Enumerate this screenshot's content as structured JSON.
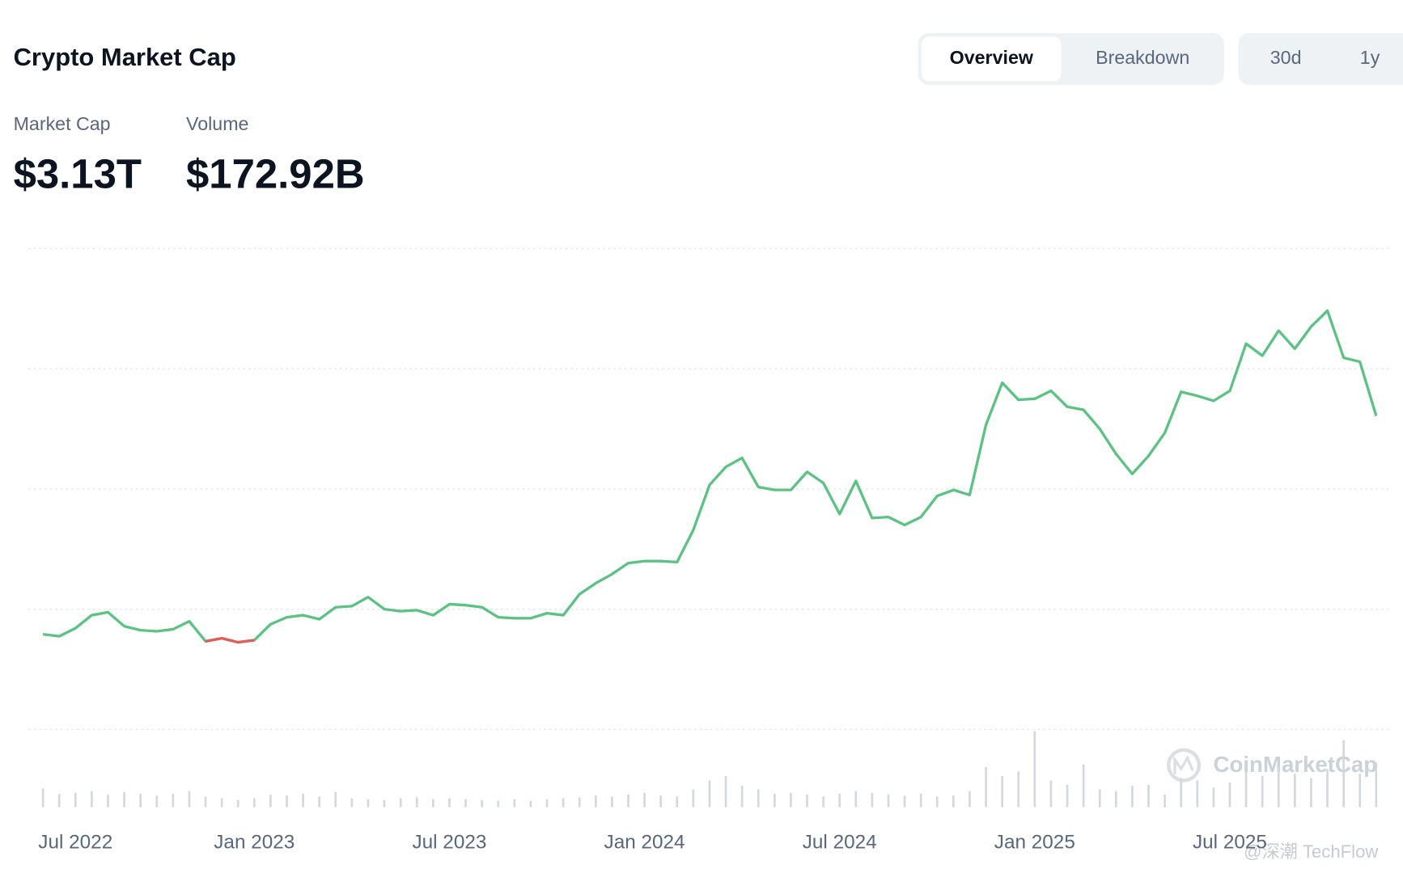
{
  "header": {
    "title": "Crypto Market Cap",
    "tabs": [
      "Overview",
      "Breakdown"
    ],
    "ranges": [
      "30d",
      "1y"
    ]
  },
  "stats": [
    {
      "label": "Market Cap",
      "value": "$3.13T"
    },
    {
      "label": "Volume",
      "value": "$172.92B"
    }
  ],
  "chart_data": {
    "type": "line",
    "categories": [
      null,
      null,
      "Jul 2022",
      null,
      null,
      null,
      null,
      null,
      null,
      null,
      null,
      null,
      null,
      "Jan 2023",
      null,
      null,
      null,
      null,
      null,
      null,
      null,
      null,
      null,
      null,
      null,
      "Jul 2023",
      null,
      null,
      null,
      null,
      null,
      null,
      null,
      null,
      null,
      null,
      null,
      "Jan 2024",
      null,
      null,
      null,
      null,
      null,
      null,
      null,
      null,
      null,
      null,
      null,
      "Jul 2024",
      null,
      null,
      null,
      null,
      null,
      null,
      null,
      null,
      null,
      null,
      null,
      "Jan 2025",
      null,
      null,
      null,
      null,
      null,
      null,
      null,
      null,
      null,
      null,
      null,
      "Jul 2025",
      null,
      null,
      null,
      null,
      null,
      null,
      null,
      null,
      null
    ],
    "values": [
      0.95,
      0.93,
      1.01,
      1.14,
      1.17,
      1.03,
      0.99,
      0.98,
      1.0,
      1.08,
      0.88,
      0.91,
      0.87,
      0.89,
      1.05,
      1.12,
      1.14,
      1.1,
      1.22,
      1.23,
      1.32,
      1.2,
      1.18,
      1.19,
      1.14,
      1.25,
      1.24,
      1.22,
      1.12,
      1.11,
      1.11,
      1.16,
      1.14,
      1.35,
      1.46,
      1.55,
      1.66,
      1.68,
      1.68,
      1.67,
      1.99,
      2.44,
      2.62,
      2.71,
      2.42,
      2.39,
      2.39,
      2.57,
      2.46,
      2.15,
      2.48,
      2.11,
      2.12,
      2.04,
      2.12,
      2.33,
      2.39,
      2.34,
      3.04,
      3.46,
      3.29,
      3.3,
      3.38,
      3.22,
      3.19,
      3.0,
      2.75,
      2.55,
      2.73,
      2.96,
      3.37,
      3.33,
      3.28,
      3.38,
      3.85,
      3.73,
      3.98,
      3.8,
      4.02,
      4.18,
      3.71,
      3.67,
      3.13
    ],
    "color": "#5cc283",
    "down_color": "#e05d5d",
    "ylim": [
      0,
      4.8
    ],
    "yticks": [
      0,
      1.2,
      2.4,
      3.6,
      4.8
    ],
    "grid": true,
    "volume": {
      "values": [
        84,
        60,
        64,
        72,
        56,
        68,
        60,
        52,
        60,
        72,
        48,
        40,
        32,
        40,
        56,
        52,
        60,
        48,
        68,
        40,
        36,
        32,
        40,
        44,
        36,
        40,
        36,
        32,
        28,
        36,
        28,
        36,
        40,
        44,
        52,
        48,
        56,
        64,
        52,
        48,
        80,
        120,
        140,
        96,
        80,
        60,
        64,
        56,
        48,
        60,
        72,
        64,
        56,
        52,
        60,
        48,
        52,
        72,
        180,
        140,
        160,
        340,
        120,
        100,
        190,
        80,
        72,
        96,
        100,
        56,
        130,
        120,
        88,
        110,
        160,
        140,
        180,
        150,
        130,
        170,
        300,
        150,
        200
      ],
      "color": "#d3d7de"
    },
    "y2lim": [
      0,
      400
    ],
    "watermark": "CoinMarketCap"
  },
  "credit": "@深潮 TechFlow"
}
